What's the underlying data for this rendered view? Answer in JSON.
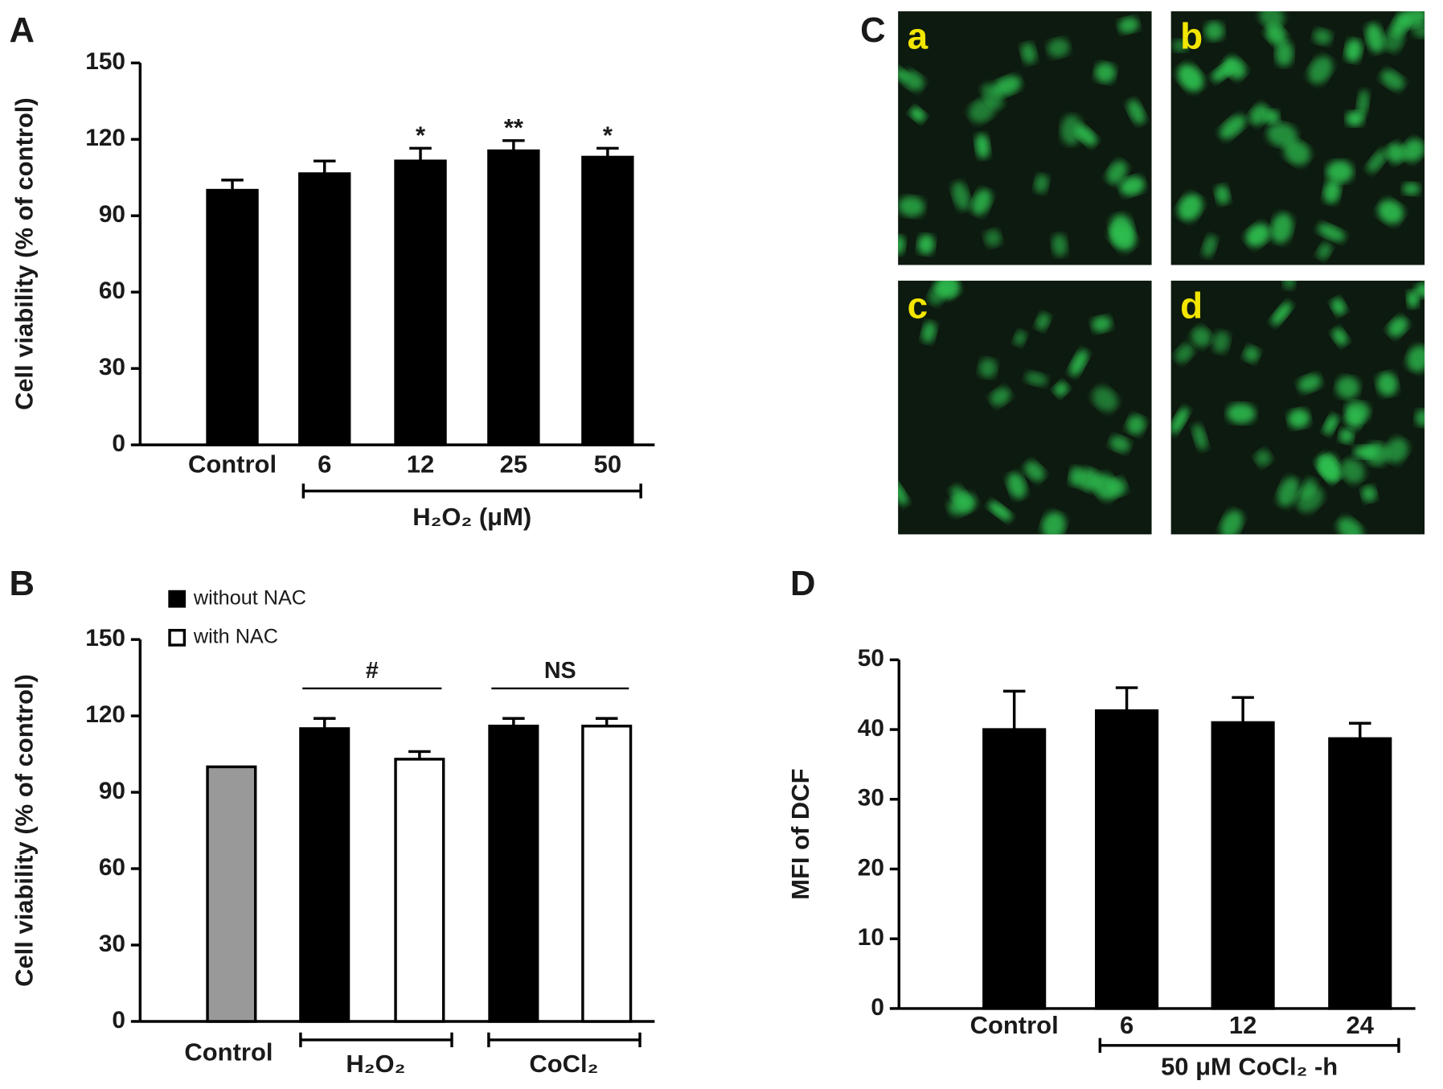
{
  "chart_data": [
    {
      "type": "bar",
      "panel": "A",
      "ylabel": "Cell viability (% of control)",
      "categories": [
        "Control",
        "6",
        "12",
        "25",
        "50"
      ],
      "values": [
        100,
        106.5,
        111.5,
        115.5,
        113
      ],
      "errors": [
        4,
        5,
        5,
        4,
        3.5
      ],
      "value_annotations": [
        null,
        null,
        "*",
        "**",
        "*"
      ],
      "group_label": "H₂O₂ (μM)",
      "color": "#000000",
      "ylim": [
        0,
        150
      ],
      "yticks": [
        0,
        30,
        60,
        90,
        120,
        150
      ]
    },
    {
      "type": "grouped_bar",
      "panel": "B",
      "ylabel": "Cell viability (% of control)",
      "categories": [
        "Control",
        "H₂O₂",
        "CoCl₂"
      ],
      "control": {
        "value": 100,
        "color": "#999999"
      },
      "series": [
        {
          "name": "without NAC",
          "color": "#000000",
          "values": [
            null,
            115,
            116
          ],
          "errors": [
            null,
            4,
            3
          ]
        },
        {
          "name": "with NAC",
          "color": "#ffffff",
          "values": [
            null,
            103,
            116
          ],
          "errors": [
            null,
            3,
            3
          ]
        }
      ],
      "comparisons": [
        null,
        "#",
        "NS"
      ],
      "legend": "upper left",
      "ylim": [
        0,
        150
      ],
      "yticks": [
        0,
        30,
        60,
        90,
        120,
        150
      ]
    },
    {
      "type": "bar",
      "panel": "D",
      "ylabel": "MFI of DCF",
      "categories": [
        "Control",
        "6",
        "12",
        "24"
      ],
      "values": [
        40,
        42.7,
        41,
        38.7
      ],
      "errors": [
        5.5,
        3.3,
        3.6,
        2.2
      ],
      "group_label": "50 μM CoCl₂ -h",
      "color": "#000000",
      "ylim": [
        0,
        50
      ],
      "yticks": [
        0,
        10,
        20,
        30,
        40,
        50
      ]
    }
  ],
  "micrographs": {
    "panel": "C",
    "images": [
      "a",
      "b",
      "c",
      "d"
    ]
  }
}
